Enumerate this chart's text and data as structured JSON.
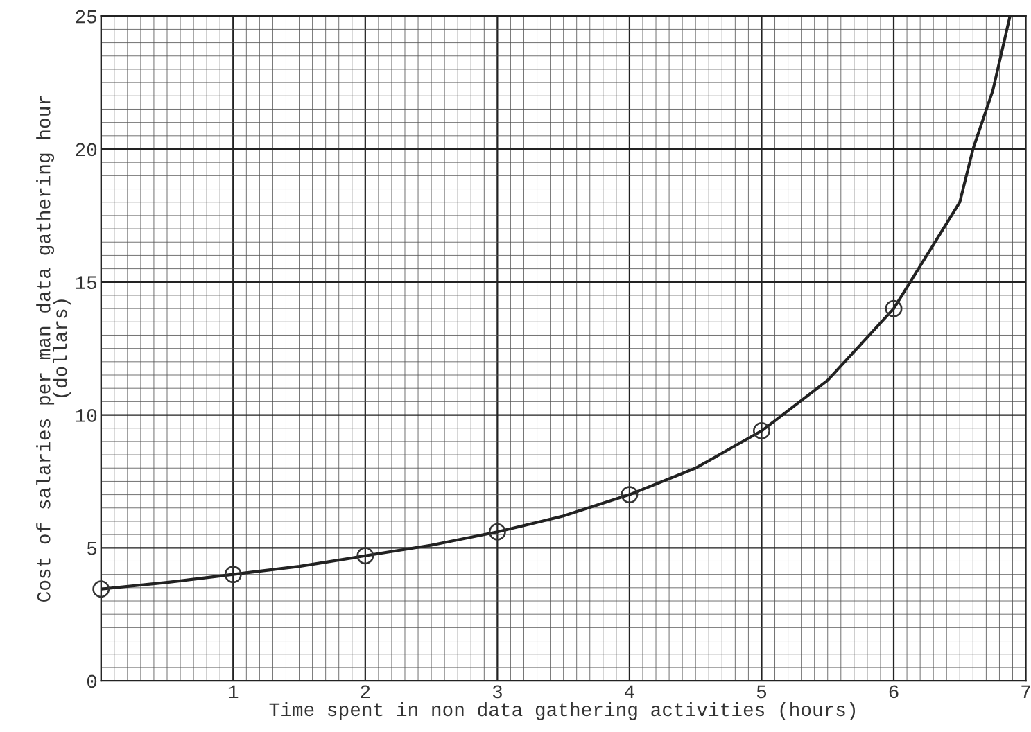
{
  "chart_data": {
    "type": "line",
    "xlabel": "Time spent in non data gathering activities (hours)",
    "ylabel": "Cost of salaries per man data gathering hour\n(dollars)",
    "xlim": [
      0,
      7
    ],
    "xticks": [
      {
        "value": 0,
        "label": null
      },
      1,
      2,
      3,
      4,
      5,
      6,
      7
    ],
    "ylim": [
      0,
      25
    ],
    "yticks": [
      0,
      5,
      10,
      15,
      20,
      25
    ],
    "grid": true,
    "series": [
      {
        "color": "#222222",
        "marker": "none",
        "x": [
          0,
          0.5,
          1,
          1.5,
          2,
          2.5,
          3,
          3.5,
          4,
          4.5,
          5,
          5.5,
          6,
          6.25,
          6.5,
          6.6,
          6.75,
          6.88
        ],
        "values": [
          3.45,
          3.7,
          4.0,
          4.3,
          4.7,
          5.1,
          5.6,
          6.2,
          7.0,
          8.0,
          9.4,
          11.3,
          14.0,
          16.0,
          18.0,
          20.0,
          22.2,
          25.0
        ]
      },
      {
        "type": "scatter",
        "color": "#333333",
        "marker": "circle",
        "x": [
          0,
          1,
          2,
          3,
          4,
          5,
          6
        ],
        "values": [
          3.45,
          4.0,
          4.7,
          5.6,
          7.0,
          9.4,
          14.0
        ]
      }
    ]
  }
}
